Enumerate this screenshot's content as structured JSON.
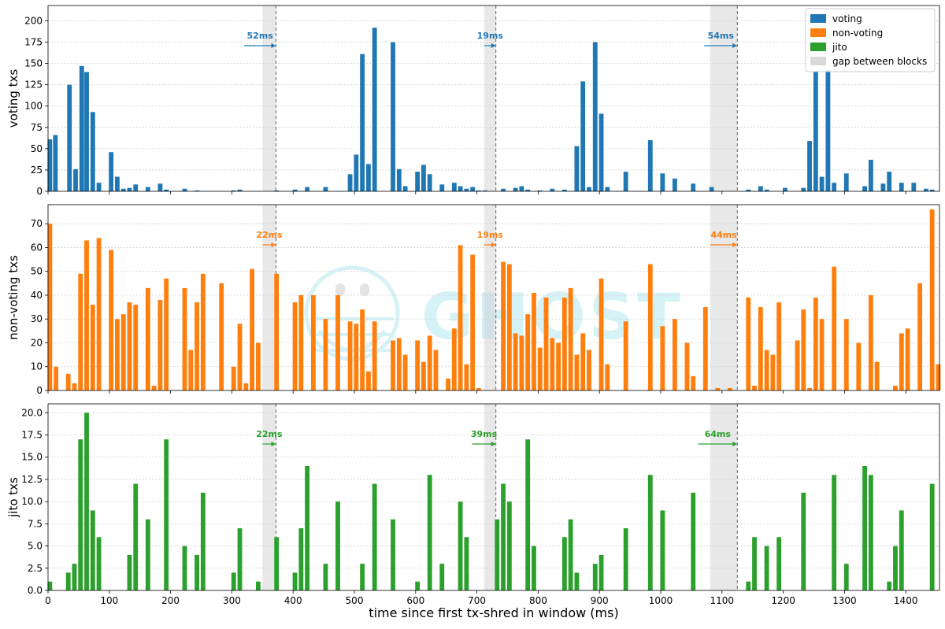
{
  "figure": {
    "xlabel": "time since first tx-shred in window (ms)",
    "xlim": [
      0,
      1455
    ],
    "xticks": [
      0,
      100,
      200,
      300,
      400,
      500,
      600,
      700,
      800,
      900,
      1000,
      1100,
      1200,
      1300,
      1400
    ],
    "bar_width_ms": 7.5
  },
  "watermark": {
    "text": "GHOST"
  },
  "legend": {
    "position": "top-right",
    "entries": [
      {
        "label": "voting",
        "color": "#1f77b4"
      },
      {
        "label": "non-voting",
        "color": "#ff7f0e"
      },
      {
        "label": "jito",
        "color": "#2ca02c"
      },
      {
        "label": "gap between blocks",
        "color": "#cccccc"
      }
    ]
  },
  "block_boundaries_ms": [
    372,
    731,
    1125
  ],
  "chart_data": [
    {
      "type": "bar",
      "name": "voting",
      "ylabel": "voting txs",
      "color": "#1f77b4",
      "ylim": [
        0,
        218
      ],
      "yticks": [
        0,
        25,
        50,
        75,
        100,
        125,
        150,
        175,
        200
      ],
      "ytick_labels": [
        "0",
        "25",
        "50",
        "75",
        "100",
        "125",
        "150",
        "175",
        "200"
      ],
      "gaps": [
        {
          "start": 350,
          "end": 372,
          "label": "52ms",
          "arrow_from": 320,
          "arrow_to": 372
        },
        {
          "start": 712,
          "end": 731,
          "label": "19ms",
          "arrow_from": 712,
          "arrow_to": 731
        },
        {
          "start": 1081,
          "end": 1125,
          "label": "54ms",
          "arrow_from": 1071,
          "arrow_to": 1125
        }
      ],
      "x": [
        3,
        12,
        35,
        45,
        55,
        63,
        73,
        83,
        103,
        113,
        123,
        133,
        143,
        163,
        183,
        193,
        223,
        243,
        303,
        313,
        373,
        403,
        423,
        453,
        493,
        503,
        513,
        523,
        533,
        563,
        573,
        583,
        603,
        613,
        623,
        643,
        663,
        673,
        683,
        693,
        703,
        713,
        743,
        763,
        773,
        783,
        803,
        823,
        843,
        863,
        873,
        883,
        893,
        903,
        913,
        943,
        983,
        1003,
        1023,
        1053,
        1083,
        1143,
        1163,
        1173,
        1203,
        1233,
        1243,
        1253,
        1263,
        1273,
        1283,
        1303,
        1333,
        1343,
        1363,
        1373,
        1393,
        1413,
        1433,
        1443
      ],
      "values": [
        61,
        66,
        125,
        26,
        147,
        140,
        93,
        10,
        46,
        17,
        3,
        4,
        8,
        5,
        9,
        2,
        3,
        1,
        1,
        2,
        1,
        2,
        5,
        5,
        20,
        43,
        161,
        32,
        192,
        175,
        26,
        6,
        23,
        31,
        20,
        8,
        10,
        6,
        3,
        5,
        1,
        1,
        3,
        4,
        6,
        2,
        1,
        3,
        2,
        53,
        129,
        5,
        175,
        91,
        5,
        23,
        60,
        21,
        15,
        9,
        5,
        2,
        6,
        2,
        4,
        4,
        59,
        141,
        17,
        142,
        10,
        21,
        6,
        37,
        9,
        23,
        10,
        10,
        3,
        2
      ]
    },
    {
      "type": "bar",
      "name": "non-voting",
      "ylabel": "non-voting txs",
      "color": "#ff7f0e",
      "ylim": [
        0,
        78
      ],
      "yticks": [
        0,
        10,
        20,
        30,
        40,
        50,
        60,
        70
      ],
      "ytick_labels": [
        "0",
        "10",
        "20",
        "30",
        "40",
        "50",
        "60",
        "70"
      ],
      "gaps": [
        {
          "start": 350,
          "end": 372,
          "label": "22ms",
          "arrow_from": 350,
          "arrow_to": 372
        },
        {
          "start": 712,
          "end": 731,
          "label": "19ms",
          "arrow_from": 712,
          "arrow_to": 731
        },
        {
          "start": 1081,
          "end": 1125,
          "label": "44ms",
          "arrow_from": 1081,
          "arrow_to": 1125
        }
      ],
      "x": [
        3,
        13,
        33,
        43,
        53,
        63,
        73,
        83,
        103,
        113,
        123,
        133,
        143,
        163,
        173,
        183,
        193,
        223,
        233,
        243,
        253,
        283,
        303,
        313,
        323,
        333,
        343,
        373,
        403,
        413,
        433,
        453,
        473,
        493,
        503,
        513,
        523,
        533,
        563,
        573,
        583,
        603,
        613,
        623,
        633,
        653,
        663,
        673,
        683,
        693,
        703,
        713,
        743,
        753,
        763,
        773,
        783,
        793,
        803,
        813,
        823,
        833,
        843,
        853,
        863,
        873,
        883,
        903,
        913,
        943,
        983,
        1003,
        1023,
        1043,
        1053,
        1073,
        1093,
        1113,
        1143,
        1153,
        1163,
        1173,
        1183,
        1193,
        1223,
        1233,
        1243,
        1253,
        1263,
        1283,
        1303,
        1323,
        1343,
        1353,
        1383,
        1393,
        1403,
        1423,
        1443,
        1453
      ],
      "values": [
        70,
        10,
        7,
        3,
        49,
        63,
        36,
        64,
        59,
        30,
        32,
        37,
        36,
        43,
        2,
        38,
        47,
        43,
        17,
        37,
        49,
        45,
        10,
        28,
        3,
        51,
        20,
        49,
        37,
        40,
        40,
        30,
        40,
        29,
        28,
        34,
        8,
        29,
        21,
        22,
        15,
        21,
        12,
        23,
        17,
        5,
        26,
        61,
        11,
        57,
        1,
        0,
        54,
        53,
        24,
        23,
        32,
        41,
        18,
        39,
        22,
        20,
        39,
        43,
        15,
        24,
        17,
        47,
        11,
        29,
        53,
        27,
        30,
        20,
        6,
        35,
        1,
        1,
        39,
        2,
        35,
        17,
        15,
        37,
        21,
        34,
        1,
        39,
        30,
        52,
        30,
        20,
        40,
        12,
        2,
        24,
        26,
        45,
        76,
        11
      ]
    },
    {
      "type": "bar",
      "name": "jito",
      "ylabel": "jito txs",
      "color": "#2ca02c",
      "ylim": [
        0,
        21
      ],
      "yticks": [
        0,
        2.5,
        5,
        7.5,
        10,
        12.5,
        15,
        17.5,
        20
      ],
      "ytick_labels": [
        "0.0",
        "2.5",
        "5.0",
        "7.5",
        "10.0",
        "12.5",
        "15.0",
        "17.5",
        "20.0"
      ],
      "gaps": [
        {
          "start": 350,
          "end": 372,
          "label": "22ms",
          "arrow_from": 350,
          "arrow_to": 372
        },
        {
          "start": 712,
          "end": 731,
          "label": "39ms",
          "arrow_from": 692,
          "arrow_to": 731
        },
        {
          "start": 1081,
          "end": 1125,
          "label": "64ms",
          "arrow_from": 1061,
          "arrow_to": 1125
        }
      ],
      "x": [
        3,
        33,
        43,
        53,
        63,
        73,
        83,
        133,
        143,
        163,
        193,
        223,
        243,
        253,
        303,
        313,
        343,
        373,
        403,
        413,
        423,
        453,
        473,
        513,
        533,
        563,
        603,
        623,
        643,
        673,
        683,
        733,
        743,
        753,
        783,
        793,
        843,
        853,
        863,
        893,
        903,
        943,
        983,
        1003,
        1053,
        1143,
        1153,
        1173,
        1193,
        1233,
        1283,
        1303,
        1333,
        1343,
        1373,
        1383,
        1393,
        1443
      ],
      "values": [
        1,
        2,
        3,
        17,
        20,
        9,
        6,
        4,
        12,
        8,
        17,
        5,
        4,
        11,
        2,
        7,
        1,
        6,
        2,
        7,
        14,
        3,
        10,
        3,
        12,
        8,
        1,
        13,
        3,
        10,
        6,
        8,
        12,
        10,
        17,
        5,
        6,
        8,
        2,
        3,
        4,
        7,
        13,
        9,
        11,
        1,
        6,
        5,
        6,
        11,
        13,
        3,
        14,
        13,
        1,
        5,
        9,
        12
      ]
    }
  ]
}
